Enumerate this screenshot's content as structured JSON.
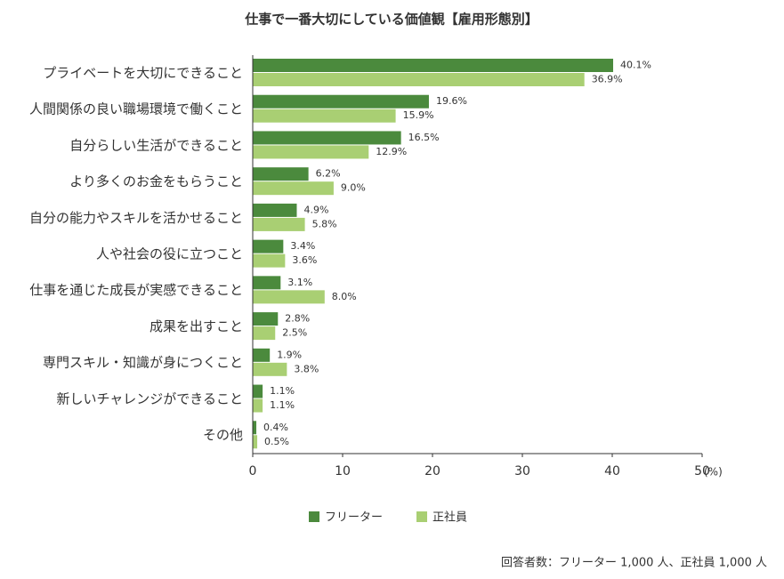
{
  "chart_data": {
    "type": "hbar",
    "title": "仕事で一番大切にしている価値観【雇用形態別】",
    "categories": [
      "プライベートを大切にできること",
      "人間関係の良い職場環境で働くこと",
      "自分らしい生活ができること",
      "より多くのお金をもらうこと",
      "自分の能力やスキルを活かせること",
      "人や社会の役に立つこと",
      "仕事を通じた成長が実感できること",
      "成果を出すこと",
      "専門スキル・知識が身につくこと",
      "新しいチャレンジができること",
      "その他"
    ],
    "series": [
      {
        "name": "フリーター",
        "color": "#4b8a3d",
        "values": [
          40.1,
          19.6,
          16.5,
          6.2,
          4.9,
          3.4,
          3.1,
          2.8,
          1.9,
          1.1,
          0.4
        ],
        "value_labels": [
          "40.1%",
          "19.6%",
          "16.5%",
          "6.2%",
          "4.9%",
          "3.4%",
          "3.1%",
          "2.8%",
          "1.9%",
          "1.1%",
          "0.4%"
        ]
      },
      {
        "name": "正社員",
        "color": "#a9cf73",
        "values": [
          36.9,
          15.9,
          12.9,
          9.0,
          5.8,
          3.6,
          8.0,
          2.5,
          3.8,
          1.1,
          0.5
        ],
        "value_labels": [
          "36.9%",
          "15.9%",
          "12.9%",
          "9.0%",
          "5.8%",
          "3.6%",
          "8.0%",
          "2.5%",
          "3.8%",
          "1.1%",
          "0.5%"
        ]
      }
    ],
    "xlim": [
      0,
      50
    ],
    "xticks": [
      0,
      10,
      20,
      30,
      40,
      50
    ],
    "xlabel": "(%)",
    "note": "回答者数：フリーター 1,000 人、正社員 1,000 人"
  }
}
